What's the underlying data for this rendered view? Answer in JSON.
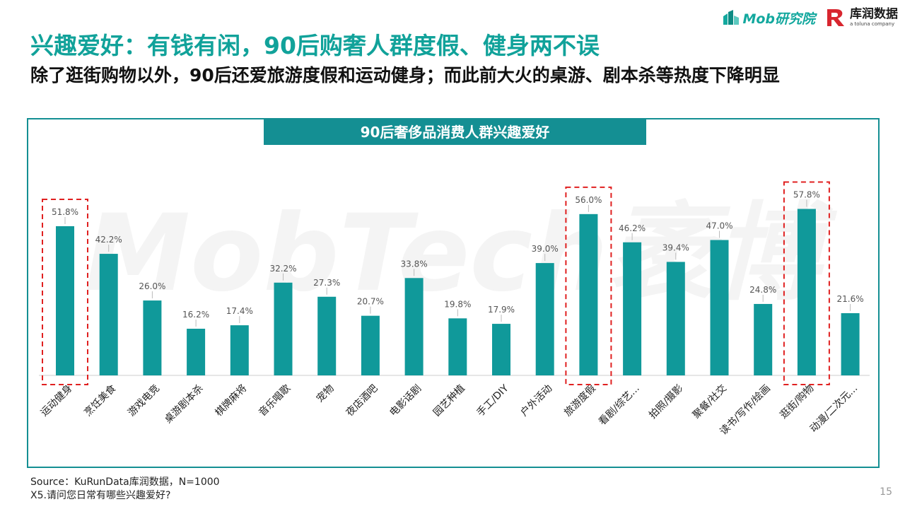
{
  "header": {
    "mob_logo_text": "Mob研究院",
    "kurun_logo_main": "库润数据",
    "kurun_logo_sub": "a toluna company"
  },
  "title": "兴趣爱好：有钱有闲，90后购奢人群度假、健身两不误",
  "subtitle": "除了逛街购物以外，90后还爱旅游度假和运动健身；而此前大火的桌游、剧本杀等热度下降明显",
  "watermark": "MobTech袤博",
  "chart_data": {
    "type": "bar",
    "title": "90后奢侈品消费人群兴趣爱好",
    "categories": [
      "运动健身",
      "烹饪美食",
      "游戏电竞",
      "桌游剧本杀",
      "棋牌麻将",
      "音乐唱歌",
      "宠物",
      "夜店酒吧",
      "电影话剧",
      "园艺种植",
      "手工/DIY",
      "户外活动",
      "旅游度假",
      "看剧/综艺...",
      "拍照/摄影",
      "聚餐/社交",
      "读书/写作/绘画",
      "逛街/购物",
      "动漫/二次元..."
    ],
    "values": [
      51.8,
      42.2,
      26.0,
      16.2,
      17.4,
      32.2,
      27.3,
      20.7,
      33.8,
      19.8,
      17.9,
      39.0,
      56.0,
      46.2,
      39.4,
      47.0,
      24.8,
      57.8,
      21.6
    ],
    "value_labels": [
      "51.8%",
      "42.2%",
      "26.0%",
      "16.2%",
      "17.4%",
      "32.2%",
      "27.3%",
      "20.7%",
      "33.8%",
      "19.8%",
      "17.9%",
      "39.0%",
      "56.0%",
      "46.2%",
      "39.4%",
      "47.0%",
      "24.8%",
      "57.8%",
      "21.6%"
    ],
    "highlighted": [
      "运动健身",
      "旅游度假",
      "逛街/购物"
    ],
    "ylim": [
      0,
      65
    ],
    "bar_color": "#10999a",
    "highlight_color": "#e02020",
    "grid": false,
    "legend": "none"
  },
  "footer": {
    "source": "Source：KuRunData库润数据，N=1000",
    "question": "X5.请问您日常有哪些兴趣爱好?",
    "page_number": "15"
  }
}
